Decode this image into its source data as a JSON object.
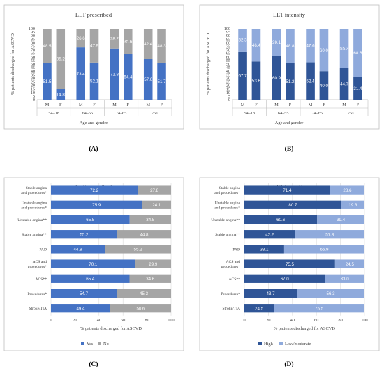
{
  "colors": {
    "yes": "#4472c4",
    "no": "#a5a5a5",
    "high": "#2f5597",
    "low_moderate": "#8faadc",
    "label_light": "#ffffff",
    "label_dark": "#ffffff",
    "grid": "#d9d9d9",
    "axis": "#bfbfbf"
  },
  "panels": [
    {
      "id": "A",
      "letter": "(A)"
    },
    {
      "id": "B",
      "letter": "(B)"
    },
    {
      "id": "C",
      "letter": "(C)"
    },
    {
      "id": "D",
      "letter": "(D)"
    }
  ],
  "chart_data": [
    {
      "panel": "A",
      "type": "bar",
      "stacked": true,
      "orientation": "vertical",
      "title": "LLT prescribed",
      "ylabel": "% patients discharged for ASCVD",
      "xlabel": "Age and gender",
      "ylim": [
        0,
        100
      ],
      "yticks": [
        0,
        5,
        10,
        15,
        20,
        25,
        30,
        35,
        40,
        45,
        50,
        55,
        60,
        65,
        70,
        75,
        80,
        85,
        90,
        95,
        100
      ],
      "groups": [
        "54–18",
        "64–55",
        "74–65",
        "75≤"
      ],
      "categories": [
        "M",
        "F",
        "M",
        "F",
        "M",
        "F",
        "M",
        "F"
      ],
      "series": [
        {
          "color_key": "yes",
          "values": [
            51.5,
            14.8,
            73.4,
            52.1,
            71.8,
            64.4,
            57.6,
            51.7
          ]
        },
        {
          "color_key": "no",
          "values": [
            48.5,
            85.2,
            26.6,
            47.9,
            28.2,
            35.6,
            42.4,
            48.3
          ]
        }
      ],
      "grid": false,
      "legend": "none"
    },
    {
      "panel": "B",
      "type": "bar",
      "stacked": true,
      "orientation": "vertical",
      "title": "LLT intensity",
      "ylabel": "% patients discharged for ASCVD",
      "xlabel": "Age and gender",
      "ylim": [
        0,
        100
      ],
      "yticks": [
        0,
        5,
        10,
        15,
        20,
        25,
        30,
        35,
        40,
        45,
        50,
        55,
        60,
        65,
        70,
        75,
        80,
        85,
        90,
        95,
        100
      ],
      "groups": [
        "54–18",
        "64–55",
        "74–65",
        "75≤"
      ],
      "categories": [
        "M",
        "F",
        "M",
        "F",
        "M",
        "F",
        "M",
        "F"
      ],
      "series": [
        {
          "color_key": "high",
          "values": [
            67.7,
            53.6,
            60.9,
            51.2,
            52.4,
            40.0,
            44.7,
            31.4
          ]
        },
        {
          "color_key": "low_moderate",
          "values": [
            32.3,
            46.4,
            39.1,
            48.8,
            47.6,
            60.0,
            55.3,
            68.6
          ]
        }
      ],
      "grid": false,
      "legend": "none"
    },
    {
      "panel": "C",
      "type": "bar",
      "stacked": true,
      "orientation": "horizontal",
      "title": "LLT prescribed",
      "xlabel": "% patients discharged for ASCVD",
      "xlim": [
        0,
        100
      ],
      "xticks": [
        0,
        20,
        40,
        60,
        80,
        100
      ],
      "categories": [
        [
          "Stable angina",
          "and procedures*"
        ],
        [
          "Unstable angina",
          "and procedures*"
        ],
        [
          "Unstable angina**"
        ],
        [
          "Stable angina**"
        ],
        [
          "PAD"
        ],
        [
          "ACS and",
          "procedures*"
        ],
        [
          "ACS**"
        ],
        [
          "Procedures*"
        ],
        [
          "Stroke/TIA"
        ]
      ],
      "series": [
        {
          "name": "Yes",
          "color_key": "yes",
          "values": [
            72.2,
            75.9,
            65.5,
            55.2,
            44.8,
            70.1,
            65.4,
            54.7,
            49.4
          ]
        },
        {
          "name": "No",
          "color_key": "no",
          "values": [
            27.8,
            24.1,
            34.5,
            44.8,
            55.2,
            29.9,
            34.6,
            45.3,
            50.6
          ]
        }
      ],
      "grid": true,
      "legend": "bottom"
    },
    {
      "panel": "D",
      "type": "bar",
      "stacked": true,
      "orientation": "horizontal",
      "title": "LLT intensity",
      "xlabel": "% patients discharged for ASCVD",
      "xlim": [
        0,
        100
      ],
      "xticks": [
        0,
        20,
        40,
        60,
        80,
        100
      ],
      "categories": [
        [
          "Stable angina",
          "and procedures*"
        ],
        [
          "Unstable angina",
          "and procedures*"
        ],
        [
          "Unstable angina**"
        ],
        [
          "Stable angina**"
        ],
        [
          "PAD"
        ],
        [
          "ACS and",
          "procedures*"
        ],
        [
          "ACS**"
        ],
        [
          "Procedures*"
        ],
        [
          "Stroke/TIA"
        ]
      ],
      "series": [
        {
          "name": "High",
          "color_key": "high",
          "values": [
            71.4,
            80.7,
            60.6,
            42.2,
            33.1,
            75.5,
            67.0,
            43.7,
            24.5
          ]
        },
        {
          "name": "Low/moderate",
          "color_key": "low_moderate",
          "values": [
            28.6,
            19.3,
            39.4,
            57.8,
            66.9,
            24.5,
            33.0,
            56.3,
            75.5
          ]
        }
      ],
      "grid": true,
      "legend": "bottom"
    }
  ]
}
